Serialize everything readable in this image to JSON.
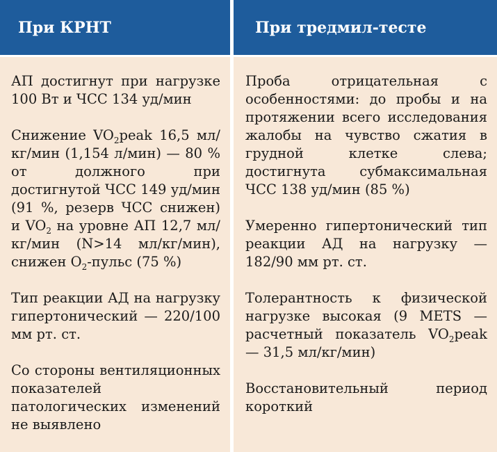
{
  "headers": {
    "left": "При КРНТ",
    "right": "При тредмил-тесте"
  },
  "left_column": [
    {
      "id": "p1",
      "text": "АП достигнут при нагрузке 100 Вт и ЧСС 134 уд/мин"
    },
    {
      "id": "p2",
      "parts": [
        "Снижение VO",
        "2",
        "peak 16,5 мл/кг/мин (1,154 л/мин) — 80 % от должного при достигнутой ЧСС 149 уд/мин (91 %, резерв ЧСС снижен) и VO",
        "2",
        " на уровне АП 12,7 мл/кг/мин (N>14 мл/кг/мин), снижен O",
        "2",
        "-пульс (75 %)"
      ]
    },
    {
      "id": "p3",
      "text": "Тип реакции АД на нагрузку гипертонический — 220/100 мм рт. ст."
    },
    {
      "id": "p4",
      "text": "Со стороны вентиляционных показателей патологических изменений не выявлено"
    }
  ],
  "right_column": [
    {
      "id": "r1",
      "text": "Проба отрицательная с особенностями: до пробы и на протяжении всего исследования жалобы на чувство сжатия в грудной клетке слева; достигнута субмаксимальная ЧСС 138 уд/мин (85 %)"
    },
    {
      "id": "r2",
      "text": "Умеренно гипертонический тип реакции АД на нагрузку — 182/90 мм рт. ст."
    },
    {
      "id": "r3",
      "parts": [
        "Толерантность к физической нагрузке высокая (9 METS — расчетный показатель VO",
        "2",
        "peak — 31,5 мл/кг/мин)"
      ]
    },
    {
      "id": "r4",
      "text": "Восстановительный период короткий"
    }
  ],
  "colors": {
    "header_bg": "#1e5c9c",
    "body_bg": "#f8e8d8",
    "text": "#1a1a1a"
  }
}
